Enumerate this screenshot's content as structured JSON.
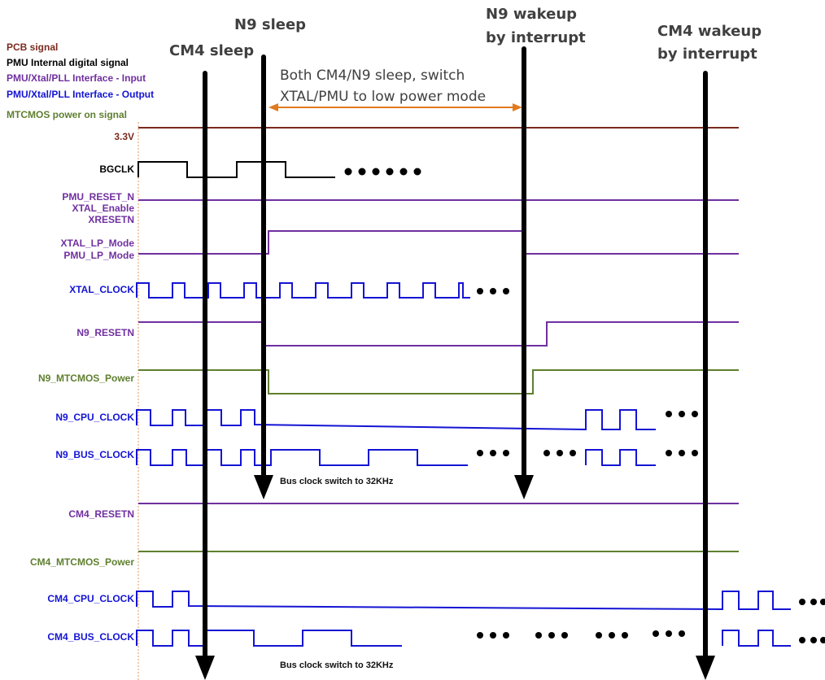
{
  "colors": {
    "pcb": "#7a2b1e",
    "pmu_internal": "#000000",
    "interface_input": "#7030a0",
    "interface_output": "#1414d4",
    "mtcmos": "#5f7f2f",
    "divider": "#e8a878",
    "arrow": "#000000",
    "span_arrow": "#e07a1f"
  },
  "legend": [
    {
      "label": "PCB signal",
      "color_key": "pcb"
    },
    {
      "label": "PMU Internal digital signal",
      "color_key": "pmu_internal"
    },
    {
      "label": "PMU/Xtal/PLL Interface - Input",
      "color_key": "interface_input"
    },
    {
      "label": "PMU/Xtal/PLL Interface - Output",
      "color_key": "interface_output"
    },
    {
      "label": "MTCMOS power on signal",
      "color_key": "mtcmos"
    }
  ],
  "events": [
    {
      "id": "cm4-sleep",
      "lines": [
        "CM4 sleep"
      ]
    },
    {
      "id": "n9-sleep",
      "lines": [
        "N9 sleep"
      ]
    },
    {
      "id": "n9-wakeup",
      "lines": [
        "N9 wakeup",
        "by interrupt"
      ]
    },
    {
      "id": "cm4-wakeup",
      "lines": [
        "CM4 wakeup",
        "by interrupt"
      ]
    }
  ],
  "span_note": [
    "Both CM4/N9 sleep, switch",
    "XTAL/PMU to low power mode"
  ],
  "bus_clock_note": "Bus clock switch to 32KHz",
  "signals": [
    {
      "id": "3v3",
      "lines": [
        "3.3V"
      ],
      "color_key": "pcb"
    },
    {
      "id": "bgclk",
      "lines": [
        "BGCLK"
      ],
      "color_key": "pmu_internal"
    },
    {
      "id": "pmu-reset",
      "lines": [
        "PMU_RESET_N",
        "XTAL_Enable",
        "XRESETN"
      ],
      "color_key": "interface_input"
    },
    {
      "id": "lp-mode",
      "lines": [
        "XTAL_LP_Mode",
        "PMU_LP_Mode"
      ],
      "color_key": "interface_input"
    },
    {
      "id": "xtal-clock",
      "lines": [
        "XTAL_CLOCK"
      ],
      "color_key": "interface_output"
    },
    {
      "id": "n9-resetn",
      "lines": [
        "N9_RESETN"
      ],
      "color_key": "interface_input"
    },
    {
      "id": "n9-mtcmos",
      "lines": [
        "N9_MTCMOS_Power"
      ],
      "color_key": "mtcmos"
    },
    {
      "id": "n9-cpu-clock",
      "lines": [
        "N9_CPU_CLOCK"
      ],
      "color_key": "interface_output"
    },
    {
      "id": "n9-bus-clock",
      "lines": [
        "N9_BUS_CLOCK"
      ],
      "color_key": "interface_output"
    },
    {
      "id": "cm4-resetn",
      "lines": [
        "CM4_RESETN"
      ],
      "color_key": "interface_input"
    },
    {
      "id": "cm4-mtcmos",
      "lines": [
        "CM4_MTCMOS_Power"
      ],
      "color_key": "mtcmos"
    },
    {
      "id": "cm4-cpu-clock",
      "lines": [
        "CM4_CPU_CLOCK"
      ],
      "color_key": "interface_output"
    },
    {
      "id": "cm4-bus-clock",
      "lines": [
        "CM4_BUS_CLOCK"
      ],
      "color_key": "interface_output"
    }
  ],
  "icons": {
    "continuation": "ellipsis-dots-icon",
    "event_marker": "down-arrow-icon",
    "span": "double-headed-arrow-icon"
  }
}
